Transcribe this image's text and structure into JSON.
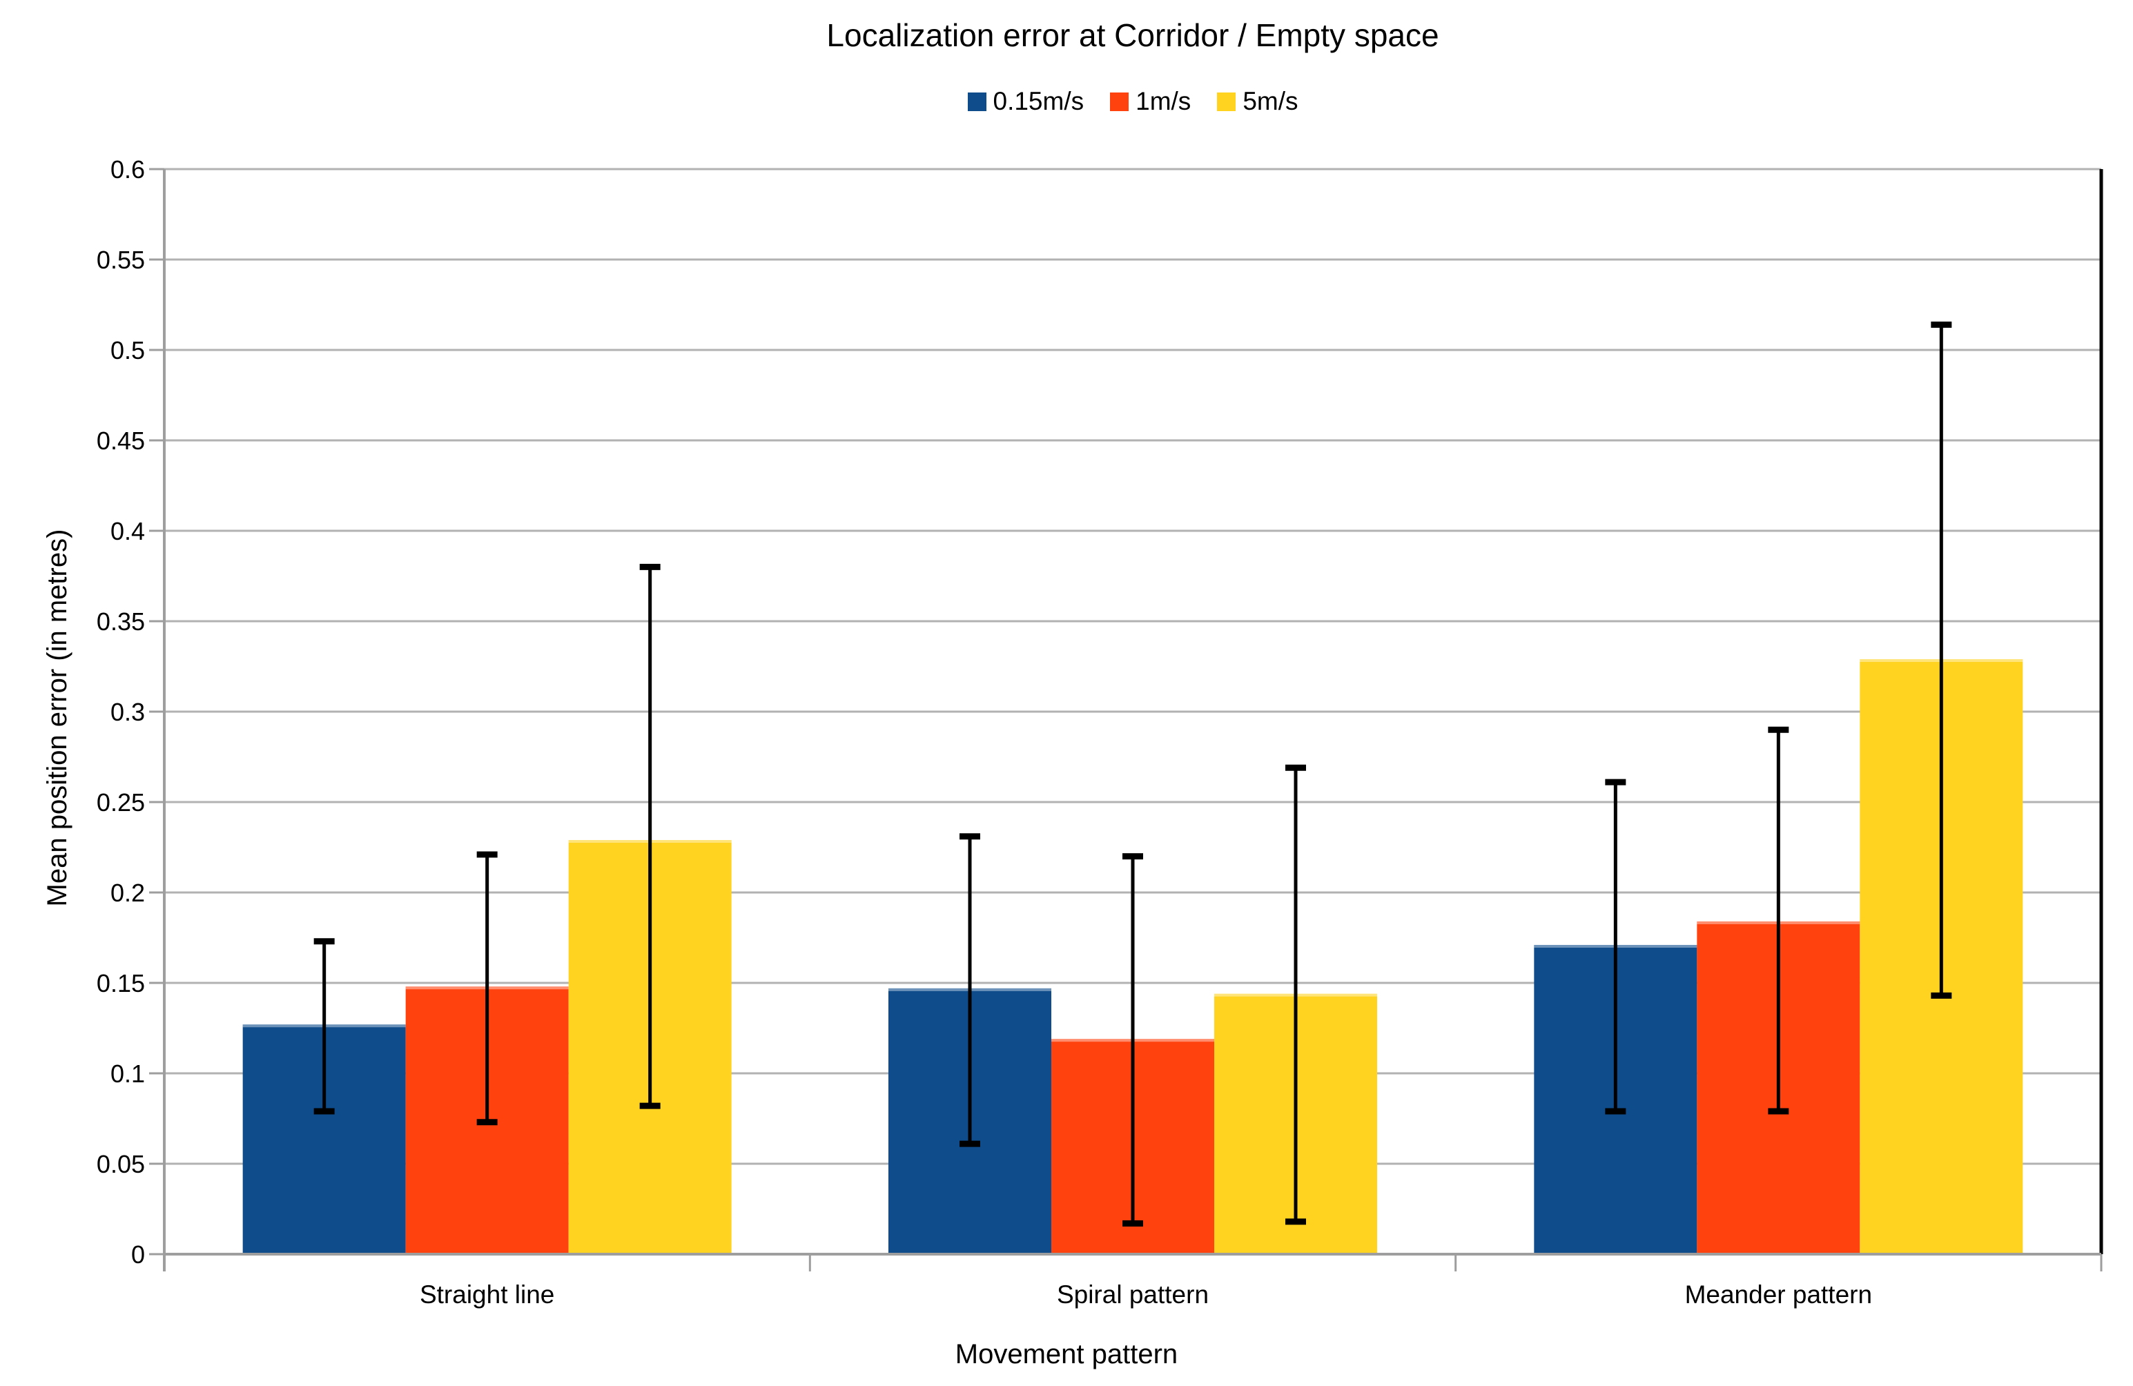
{
  "chart_data": {
    "type": "bar",
    "title": "Localization error at Corridor / Empty space",
    "xlabel": "Movement pattern",
    "ylabel": "Mean position error (in metres)",
    "categories": [
      "Straight line",
      "Spiral pattern",
      "Meander pattern"
    ],
    "series": [
      {
        "name": "0.15m/s",
        "color": "#0e4c8c",
        "values": [
          0.127,
          0.147,
          0.171
        ],
        "error_low": [
          0.079,
          0.061,
          0.079
        ],
        "error_high": [
          0.173,
          0.231,
          0.261
        ]
      },
      {
        "name": "1m/s",
        "color": "#ff420e",
        "values": [
          0.148,
          0.119,
          0.184
        ],
        "error_low": [
          0.073,
          0.017,
          0.079
        ],
        "error_high": [
          0.221,
          0.22,
          0.29
        ]
      },
      {
        "name": "5m/s",
        "color": "#ffd320",
        "values": [
          0.229,
          0.144,
          0.329
        ],
        "error_low": [
          0.082,
          0.018,
          0.143
        ],
        "error_high": [
          0.38,
          0.269,
          0.514
        ]
      }
    ],
    "ylim": [
      0,
      0.6
    ],
    "ytick_step": 0.05,
    "grid": true,
    "legend_position": "top",
    "error_bars": true
  },
  "colors": {
    "background": "#ffffff",
    "grid": "#b2b2b2",
    "axis": "#9e9e9e",
    "right_border": "#000000",
    "error_bar": "#000000",
    "text": "#000000"
  }
}
